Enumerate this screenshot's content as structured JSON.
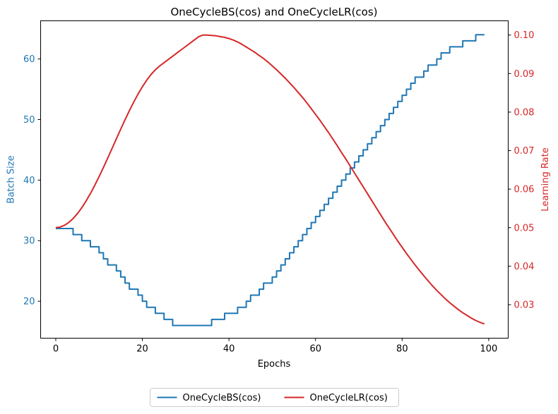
{
  "chart_data": {
    "type": "line",
    "title": "OneCycleBS(cos) and OneCycleLR(cos)",
    "xlabel": "Epochs",
    "xlim": [
      -3.5,
      104.5
    ],
    "xticks": [
      0,
      20,
      40,
      60,
      80,
      100
    ],
    "ylabel_left": "Batch Size",
    "ylim_left": [
      13.9,
      66.3
    ],
    "yticks_left": [
      20,
      30,
      40,
      50,
      60
    ],
    "ylabel_right": "Learning Rate",
    "ylim_right": [
      0.0213,
      0.1037
    ],
    "yticks_right": [
      0.03,
      0.04,
      0.05,
      0.06,
      0.07,
      0.08,
      0.09,
      0.1
    ],
    "grid": false,
    "legend_placement": "bottom-center, below axes, 2 columns",
    "colors": {
      "bs": "#1f77b4",
      "lr": "#d62728"
    },
    "x": [
      0,
      1,
      2,
      3,
      4,
      5,
      6,
      7,
      8,
      9,
      10,
      11,
      12,
      13,
      14,
      15,
      16,
      17,
      18,
      19,
      20,
      21,
      22,
      23,
      24,
      25,
      26,
      27,
      28,
      29,
      30,
      31,
      32,
      33,
      34,
      35,
      36,
      37,
      38,
      39,
      40,
      41,
      42,
      43,
      44,
      45,
      46,
      47,
      48,
      49,
      50,
      51,
      52,
      53,
      54,
      55,
      56,
      57,
      58,
      59,
      60,
      61,
      62,
      63,
      64,
      65,
      66,
      67,
      68,
      69,
      70,
      71,
      72,
      73,
      74,
      75,
      76,
      77,
      78,
      79,
      80,
      81,
      82,
      83,
      84,
      85,
      86,
      87,
      88,
      89,
      90,
      91,
      92,
      93,
      94,
      95,
      96,
      97,
      98,
      99
    ],
    "series": [
      {
        "name": "OneCycleBS(cos)",
        "axis": "left",
        "values": [
          32,
          32,
          32,
          32,
          31,
          31,
          30,
          30,
          29,
          29,
          28,
          27,
          26,
          26,
          25,
          24,
          23,
          22,
          22,
          21,
          20,
          19,
          19,
          18,
          18,
          17,
          17,
          16,
          16,
          16,
          16,
          16,
          16,
          16,
          16,
          16,
          17,
          17,
          17,
          18,
          18,
          18,
          19,
          19,
          20,
          21,
          21,
          22,
          23,
          23,
          24,
          25,
          26,
          27,
          28,
          29,
          30,
          31,
          32,
          33,
          34,
          35,
          36,
          37,
          38,
          39,
          40,
          41,
          42,
          43,
          44,
          45,
          46,
          47,
          48,
          49,
          50,
          51,
          52,
          53,
          54,
          55,
          56,
          57,
          57,
          58,
          59,
          59,
          60,
          61,
          61,
          62,
          62,
          62,
          63,
          63,
          63,
          64,
          64,
          64
        ]
      },
      {
        "name": "OneCycleLR(cos)",
        "axis": "right",
        "values": [
          0.05,
          0.05015,
          0.0506,
          0.05134,
          0.05235,
          0.05363,
          0.05516,
          0.05691,
          0.05885,
          0.06097,
          0.06323,
          0.0656,
          0.06806,
          0.07056,
          0.07307,
          0.07557,
          0.07801,
          0.08036,
          0.08259,
          0.08467,
          0.08657,
          0.08827,
          0.08975,
          0.09099,
          0.09198,
          0.09282,
          0.09366,
          0.09451,
          0.09535,
          0.09619,
          0.09704,
          0.09788,
          0.09872,
          0.09957,
          0.1,
          0.1,
          0.0999,
          0.0998,
          0.0996,
          0.0994,
          0.0991,
          0.0987,
          0.0982,
          0.0976,
          0.0969,
          0.0962,
          0.0955,
          0.0947,
          0.0939,
          0.093,
          0.092,
          0.091,
          0.0899,
          0.0888,
          0.0876,
          0.0864,
          0.0851,
          0.0838,
          0.0824,
          0.0809,
          0.0794,
          0.0779,
          0.0763,
          0.0747,
          0.073,
          0.0713,
          0.0695,
          0.0678,
          0.066,
          0.0642,
          0.0624,
          0.0606,
          0.0588,
          0.057,
          0.0552,
          0.0534,
          0.0516,
          0.0499,
          0.0482,
          0.0465,
          0.0449,
          0.0433,
          0.0418,
          0.0403,
          0.0389,
          0.0375,
          0.0362,
          0.0349,
          0.0337,
          0.0326,
          0.0315,
          0.0305,
          0.0296,
          0.0287,
          0.0279,
          0.0272,
          0.0265,
          0.0259,
          0.0254,
          0.025
        ]
      }
    ]
  }
}
